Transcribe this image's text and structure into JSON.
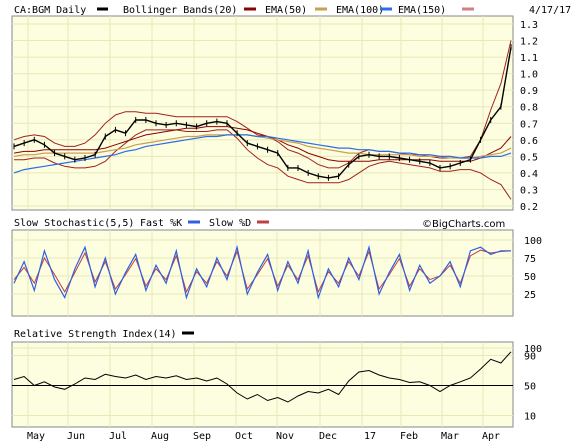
{
  "header": {
    "ticker_label": "CA:BGM Daily",
    "bollinger_label": "Bollinger Bands(20)",
    "ema50_label": "EMA(50)",
    "ema100_label": "EMA(100)",
    "ema150_label": "EMA(150)",
    "date": "4/17/17"
  },
  "stoch": {
    "title": "Slow Stochastic(5,5)",
    "fast_label": "Fast %K",
    "slow_label": "Slow %D",
    "watermark": "©BigCharts.com"
  },
  "rsi": {
    "title": "Relative Strength Index(14)"
  },
  "colors": {
    "price": "#000000",
    "bollinger": "#a02020",
    "ema50": "#8b0000",
    "ema100": "#c8a050",
    "ema150": "#2c6ee8",
    "slowd": "#c04040",
    "fastk": "#3060e0",
    "panel_bg": "#fdfde0",
    "grid": "#e8e8b8"
  },
  "chart_data": [
    {
      "type": "line",
      "title": "CA:BGM Daily",
      "ylim": [
        0.2,
        1.3
      ],
      "yticks": [
        "1.3",
        "1.2",
        "1.1",
        "1.0",
        "0.9",
        "0.8",
        "0.7",
        "0.6",
        "0.5",
        "0.4",
        "0.3",
        "0.2"
      ],
      "xticks": [
        "May",
        "Jun",
        "Jul",
        "Aug",
        "Sep",
        "Oct",
        "Nov",
        "Dec",
        "17",
        "Feb",
        "Mar",
        "Apr"
      ],
      "series": [
        {
          "name": "CA:BGM Daily",
          "values": [
            0.56,
            0.58,
            0.6,
            0.57,
            0.52,
            0.5,
            0.48,
            0.49,
            0.51,
            0.62,
            0.66,
            0.64,
            0.72,
            0.72,
            0.7,
            0.69,
            0.7,
            0.69,
            0.68,
            0.7,
            0.71,
            0.7,
            0.64,
            0.58,
            0.56,
            0.54,
            0.52,
            0.43,
            0.43,
            0.4,
            0.38,
            0.37,
            0.38,
            0.45,
            0.5,
            0.51,
            0.5,
            0.5,
            0.49,
            0.48,
            0.47,
            0.46,
            0.43,
            0.44,
            0.46,
            0.48,
            0.6,
            0.72,
            0.8,
            1.16
          ]
        },
        {
          "name": "Bollinger Bands(20)",
          "values": [
            0.6,
            0.62,
            0.63,
            0.62,
            0.58,
            0.56,
            0.56,
            0.58,
            0.63,
            0.7,
            0.75,
            0.77,
            0.77,
            0.76,
            0.76,
            0.75,
            0.74,
            0.74,
            0.74,
            0.74,
            0.74,
            0.74,
            0.71,
            0.67,
            0.63,
            0.62,
            0.59,
            0.54,
            0.52,
            0.49,
            0.45,
            0.43,
            0.43,
            0.46,
            0.52,
            0.54,
            0.53,
            0.53,
            0.52,
            0.51,
            0.51,
            0.5,
            0.49,
            0.49,
            0.49,
            0.5,
            0.6,
            0.78,
            0.94,
            1.2
          ]
        },
        {
          "name": "Bollinger Bands(20)",
          "values": [
            0.48,
            0.48,
            0.49,
            0.49,
            0.46,
            0.44,
            0.43,
            0.43,
            0.44,
            0.47,
            0.53,
            0.58,
            0.63,
            0.66,
            0.66,
            0.66,
            0.66,
            0.65,
            0.65,
            0.65,
            0.66,
            0.66,
            0.61,
            0.54,
            0.49,
            0.45,
            0.43,
            0.38,
            0.36,
            0.34,
            0.34,
            0.34,
            0.34,
            0.36,
            0.4,
            0.44,
            0.46,
            0.47,
            0.46,
            0.45,
            0.44,
            0.43,
            0.41,
            0.41,
            0.42,
            0.42,
            0.4,
            0.36,
            0.33,
            0.24
          ]
        },
        {
          "name": "EMA(50)",
          "values": [
            0.52,
            0.53,
            0.53,
            0.54,
            0.54,
            0.54,
            0.54,
            0.54,
            0.54,
            0.55,
            0.57,
            0.59,
            0.61,
            0.63,
            0.64,
            0.65,
            0.66,
            0.67,
            0.67,
            0.68,
            0.68,
            0.68,
            0.67,
            0.66,
            0.64,
            0.62,
            0.6,
            0.57,
            0.55,
            0.52,
            0.5,
            0.48,
            0.47,
            0.47,
            0.47,
            0.47,
            0.48,
            0.48,
            0.48,
            0.48,
            0.48,
            0.48,
            0.47,
            0.47,
            0.47,
            0.47,
            0.49,
            0.52,
            0.55,
            0.62
          ]
        },
        {
          "name": "EMA(100)",
          "values": [
            0.5,
            0.51,
            0.51,
            0.52,
            0.52,
            0.52,
            0.52,
            0.52,
            0.52,
            0.53,
            0.54,
            0.55,
            0.57,
            0.58,
            0.59,
            0.6,
            0.61,
            0.62,
            0.62,
            0.63,
            0.63,
            0.63,
            0.63,
            0.63,
            0.62,
            0.61,
            0.6,
            0.59,
            0.58,
            0.56,
            0.55,
            0.54,
            0.53,
            0.52,
            0.52,
            0.51,
            0.51,
            0.51,
            0.51,
            0.51,
            0.5,
            0.5,
            0.5,
            0.49,
            0.49,
            0.49,
            0.5,
            0.51,
            0.52,
            0.55
          ]
        },
        {
          "name": "EMA(150)",
          "values": [
            0.4,
            0.42,
            0.43,
            0.44,
            0.45,
            0.46,
            0.47,
            0.48,
            0.49,
            0.5,
            0.51,
            0.53,
            0.54,
            0.56,
            0.57,
            0.58,
            0.59,
            0.6,
            0.61,
            0.62,
            0.62,
            0.63,
            0.63,
            0.63,
            0.62,
            0.62,
            0.61,
            0.6,
            0.59,
            0.58,
            0.57,
            0.56,
            0.55,
            0.55,
            0.54,
            0.54,
            0.53,
            0.53,
            0.52,
            0.52,
            0.51,
            0.51,
            0.5,
            0.5,
            0.49,
            0.49,
            0.49,
            0.5,
            0.5,
            0.52
          ]
        }
      ]
    },
    {
      "type": "line",
      "title": "Slow Stochastic(5,5)",
      "ylim": [
        0,
        100
      ],
      "yticks": [
        "100",
        "75",
        "50",
        "25"
      ],
      "series": [
        {
          "name": "Fast %K",
          "values": [
            40,
            70,
            30,
            85,
            45,
            20,
            60,
            90,
            35,
            75,
            25,
            55,
            80,
            30,
            65,
            40,
            85,
            20,
            60,
            35,
            75,
            45,
            90,
            25,
            55,
            80,
            30,
            70,
            40,
            85,
            20,
            60,
            35,
            75,
            45,
            90,
            25,
            55,
            80,
            30,
            65,
            40,
            50,
            70,
            35,
            85,
            90,
            80,
            85,
            85
          ]
        },
        {
          "name": "Slow %D",
          "values": [
            45,
            62,
            40,
            75,
            52,
            28,
            55,
            82,
            42,
            70,
            32,
            52,
            74,
            36,
            60,
            45,
            78,
            28,
            56,
            40,
            70,
            50,
            84,
            32,
            52,
            74,
            36,
            65,
            45,
            78,
            28,
            56,
            40,
            70,
            50,
            84,
            32,
            52,
            74,
            36,
            60,
            45,
            50,
            65,
            40,
            78,
            86,
            82,
            84,
            85
          ]
        }
      ]
    },
    {
      "type": "line",
      "title": "Relative Strength Index(14)",
      "ylim": [
        0,
        100
      ],
      "yticks": [
        "100",
        "90",
        "50",
        "10"
      ],
      "series": [
        {
          "name": "Relative Strength Index(14)",
          "values": [
            58,
            62,
            50,
            55,
            48,
            45,
            52,
            60,
            58,
            65,
            62,
            60,
            64,
            58,
            62,
            60,
            63,
            58,
            60,
            56,
            60,
            52,
            40,
            32,
            38,
            30,
            34,
            28,
            36,
            42,
            40,
            45,
            38,
            56,
            68,
            70,
            64,
            60,
            58,
            54,
            55,
            50,
            42,
            50,
            55,
            60,
            72,
            85,
            80,
            95
          ]
        }
      ]
    }
  ]
}
